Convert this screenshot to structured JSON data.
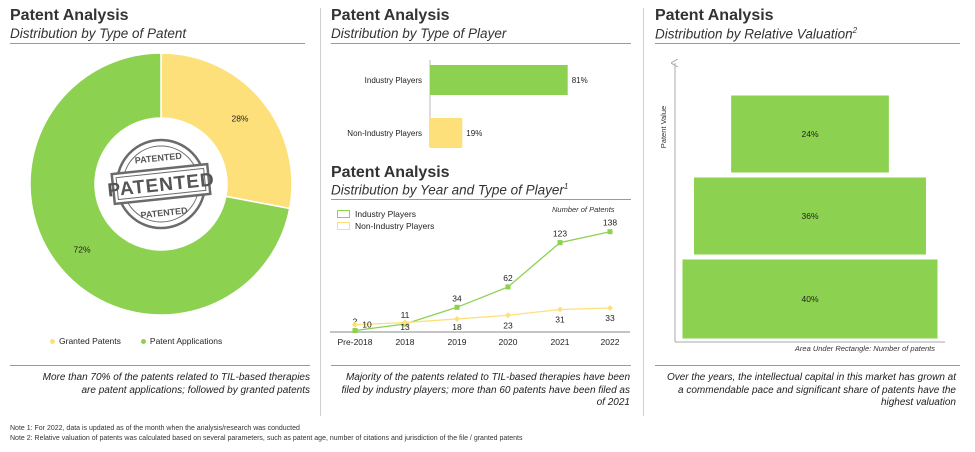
{
  "panels": {
    "left": {
      "title": "Patent Analysis",
      "subtitle": "Distribution by Type of Patent",
      "caption": "More than 70% of the patents related to TIL-based therapies are patent applications; followed by granted patents",
      "stamp": {
        "text": "PATENTED",
        "sub_text": "PATENTED"
      }
    },
    "middle_top": {
      "title": "Patent Analysis",
      "subtitle": "Distribution by Type of Player"
    },
    "middle_bottom": {
      "title": "Patent Analysis",
      "subtitle": "Distribution by Year and Type of Player",
      "subtitle_sup": "1",
      "y_annotation": "Number of Patents",
      "caption": "Majority of the patents related to TIL-based therapies have been filed by industry players; more than 60 patents have been filed as of 2021"
    },
    "right": {
      "title": "Patent Analysis",
      "subtitle": "Distribution by Relative Valuation",
      "subtitle_sup": "2",
      "caption": "Over the years, the intellectual capital in this market has grown at a commendable pace and significant share of patents have the highest valuation"
    }
  },
  "notes": [
    "Note 1: For 2022, data is updated as of the month when the analysis/research was conducted",
    "Note 2: Relative valuation of patents was calculated based on several parameters, such as patent age, number of citations and jurisdiction of the file / granted patents"
  ],
  "colors": {
    "green": "#8cd14f",
    "yellow": "#fde07a",
    "green_dark": "#7bbf3e",
    "yellow_dark": "#f5c842",
    "stamp": "#555555"
  },
  "chart_data": [
    {
      "type": "pie",
      "donut": true,
      "slices": [
        {
          "label": "Granted Patents",
          "value": 28,
          "value_label": "28%",
          "color": "#fde07a"
        },
        {
          "label": "Patent Applications",
          "value": 72,
          "value_label": "72%",
          "color": "#8cd14f"
        }
      ],
      "legend": [
        "Granted Patents",
        "Patent Applications"
      ],
      "legend_position": "bottom"
    },
    {
      "type": "bar",
      "orientation": "horizontal",
      "categories": [
        "Industry Players",
        "Non-Industry Players"
      ],
      "values": [
        81,
        19
      ],
      "value_labels": [
        "81%",
        "19%"
      ],
      "colors": [
        "#8cd14f",
        "#fde07a"
      ],
      "xlim": [
        0,
        100
      ]
    },
    {
      "type": "line",
      "categories": [
        "Pre-2018",
        "2018",
        "2019",
        "2020",
        "2021",
        "2022"
      ],
      "series": [
        {
          "name": "Industry Players",
          "values": [
            2,
            11,
            34,
            62,
            123,
            138
          ],
          "color": "#8cd14f"
        },
        {
          "name": "Non-Industry Players",
          "values": [
            10,
            13,
            18,
            23,
            31,
            33
          ],
          "color": "#fde07a"
        }
      ],
      "ylim": [
        0,
        150
      ],
      "legend_position": "top-left"
    },
    {
      "type": "bar",
      "orientation": "stacked-pyramid",
      "ylabel": "Patent Value",
      "xlabel": "Area Under Rectangle: Number of patents",
      "categories": [
        "Top",
        "Middle",
        "Bottom"
      ],
      "values": [
        24,
        36,
        40
      ],
      "value_labels": [
        "24%",
        "36%",
        "40%"
      ],
      "color": "#8cd14f"
    }
  ]
}
